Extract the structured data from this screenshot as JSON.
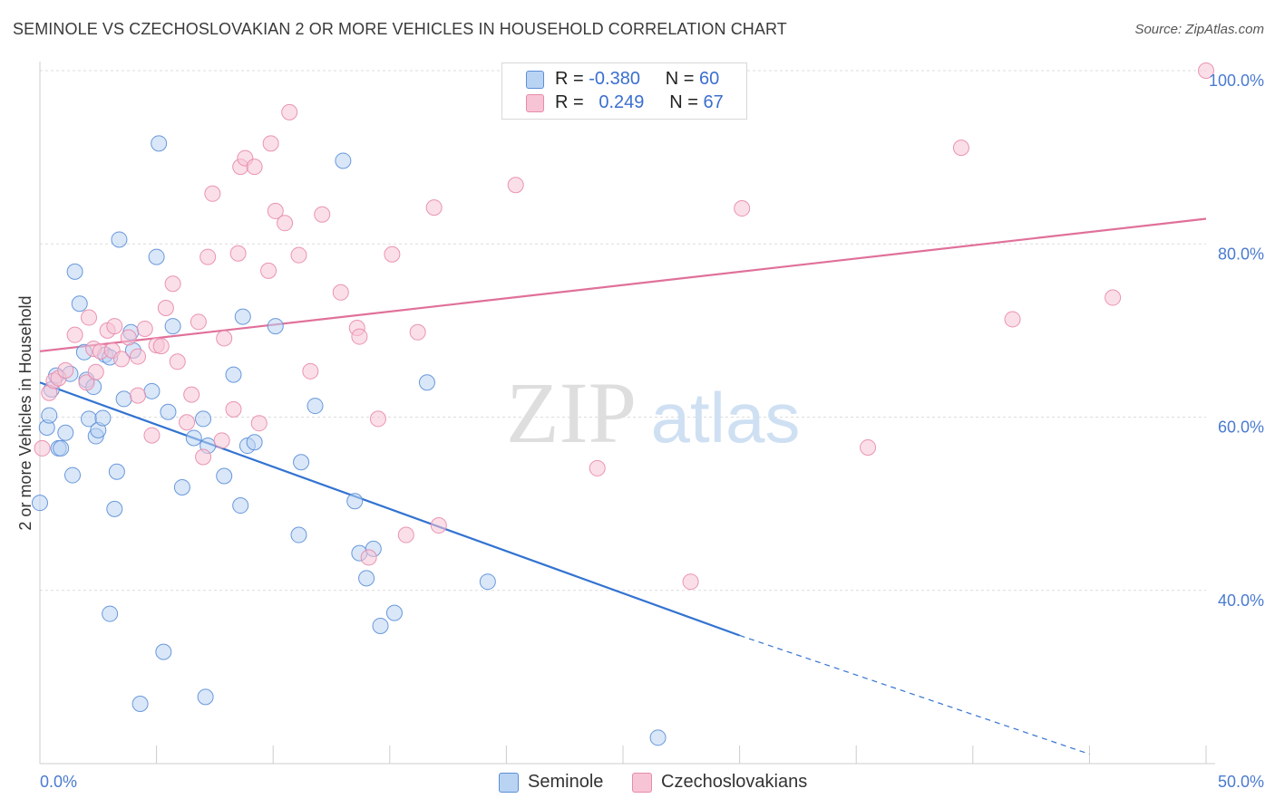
{
  "title": "SEMINOLE VS CZECHOSLOVAKIAN 2 OR MORE VEHICLES IN HOUSEHOLD CORRELATION CHART",
  "source": "Source: ZipAtlas.com",
  "watermark": {
    "zip": "ZIP",
    "atlas": "atlas"
  },
  "legend": {
    "rows": [
      {
        "r_label": "R =",
        "r_value": "-0.380",
        "n_label": "N =",
        "n_value": "60"
      },
      {
        "r_label": "R =",
        "r_value": "0.249",
        "n_label": "N =",
        "n_value": "67"
      }
    ]
  },
  "bottom_legend": [
    "Seminole",
    "Czechoslovakians"
  ],
  "colors": {
    "seminole_fill": "#b9d3f3",
    "seminole_stroke": "#5b8ed8",
    "seminole_line": "#3373d1",
    "czech_fill": "#f7c4d5",
    "czech_stroke": "#e88aab",
    "czech_line": "#e0709a",
    "tick_text": "#4a7bd0",
    "grid": "#dcdcdc"
  },
  "chart_data": {
    "type": "scatter",
    "xlabel": "",
    "ylabel": "2 or more Vehicles in Household",
    "xlim": [
      0,
      50
    ],
    "ylim": [
      20,
      100
    ],
    "x_tick_labels": [
      "0.0%",
      "50.0%"
    ],
    "y_ticks": [
      40,
      60,
      80,
      100
    ],
    "y_tick_labels": [
      "40.0%",
      "60.0%",
      "80.0%",
      "100.0%"
    ],
    "grid": true,
    "series": [
      {
        "name": "Seminole",
        "r": -0.38,
        "n": 60,
        "trend": {
          "x0": 0,
          "y0": 64.0,
          "x1": 30,
          "y1": 34.8,
          "dashed_to_x": 45,
          "dashed_to_y": 21.1
        },
        "points": [
          [
            0.0,
            50.1
          ],
          [
            0.3,
            58.8
          ],
          [
            0.4,
            60.2
          ],
          [
            0.5,
            63.2
          ],
          [
            0.7,
            64.8
          ],
          [
            0.8,
            56.4
          ],
          [
            0.9,
            56.4
          ],
          [
            1.1,
            58.2
          ],
          [
            1.3,
            65.0
          ],
          [
            1.4,
            53.3
          ],
          [
            1.5,
            76.8
          ],
          [
            1.7,
            73.1
          ],
          [
            1.9,
            67.5
          ],
          [
            2.0,
            64.3
          ],
          [
            2.1,
            59.8
          ],
          [
            2.3,
            63.5
          ],
          [
            2.4,
            57.8
          ],
          [
            2.5,
            58.5
          ],
          [
            2.7,
            59.9
          ],
          [
            2.8,
            67.2
          ],
          [
            3.0,
            66.9
          ],
          [
            3.0,
            37.3
          ],
          [
            3.2,
            49.4
          ],
          [
            3.3,
            53.7
          ],
          [
            3.4,
            80.5
          ],
          [
            3.6,
            62.1
          ],
          [
            3.9,
            69.8
          ],
          [
            4.0,
            67.7
          ],
          [
            4.3,
            26.9
          ],
          [
            4.8,
            63.0
          ],
          [
            5.0,
            78.5
          ],
          [
            5.1,
            91.6
          ],
          [
            5.3,
            32.9
          ],
          [
            5.5,
            60.6
          ],
          [
            5.7,
            70.5
          ],
          [
            6.1,
            51.9
          ],
          [
            6.6,
            57.6
          ],
          [
            7.0,
            59.8
          ],
          [
            7.1,
            27.7
          ],
          [
            7.2,
            56.7
          ],
          [
            7.9,
            53.2
          ],
          [
            8.3,
            64.9
          ],
          [
            8.6,
            49.8
          ],
          [
            8.7,
            71.6
          ],
          [
            8.9,
            56.7
          ],
          [
            9.2,
            57.1
          ],
          [
            10.1,
            70.5
          ],
          [
            11.1,
            46.4
          ],
          [
            11.2,
            54.8
          ],
          [
            11.8,
            61.3
          ],
          [
            13.0,
            89.6
          ],
          [
            13.5,
            50.3
          ],
          [
            13.7,
            44.3
          ],
          [
            14.0,
            41.4
          ],
          [
            14.3,
            44.8
          ],
          [
            14.6,
            35.9
          ],
          [
            15.2,
            37.4
          ],
          [
            16.6,
            64.0
          ],
          [
            19.2,
            41.0
          ],
          [
            26.5,
            23.0
          ]
        ]
      },
      {
        "name": "Czechoslovakians",
        "r": 0.249,
        "n": 67,
        "trend": {
          "x0": 0,
          "y0": 67.6,
          "x1": 50,
          "y1": 82.9
        },
        "points": [
          [
            0.1,
            56.4
          ],
          [
            0.4,
            62.8
          ],
          [
            0.6,
            64.2
          ],
          [
            0.8,
            64.5
          ],
          [
            1.1,
            65.4
          ],
          [
            1.5,
            69.5
          ],
          [
            2.0,
            64.0
          ],
          [
            2.1,
            71.5
          ],
          [
            2.3,
            67.9
          ],
          [
            2.4,
            65.2
          ],
          [
            2.6,
            67.6
          ],
          [
            2.9,
            70.0
          ],
          [
            3.1,
            67.7
          ],
          [
            3.2,
            70.5
          ],
          [
            3.5,
            66.7
          ],
          [
            3.8,
            69.2
          ],
          [
            4.2,
            67.0
          ],
          [
            4.2,
            62.5
          ],
          [
            4.5,
            70.2
          ],
          [
            4.8,
            57.9
          ],
          [
            5.0,
            68.3
          ],
          [
            5.2,
            68.2
          ],
          [
            5.4,
            72.6
          ],
          [
            5.7,
            75.4
          ],
          [
            5.9,
            66.4
          ],
          [
            6.3,
            59.4
          ],
          [
            6.5,
            62.6
          ],
          [
            6.8,
            71.0
          ],
          [
            7.0,
            55.4
          ],
          [
            7.2,
            78.5
          ],
          [
            7.4,
            85.8
          ],
          [
            7.8,
            57.3
          ],
          [
            7.9,
            69.1
          ],
          [
            8.3,
            60.9
          ],
          [
            8.5,
            78.9
          ],
          [
            8.6,
            88.9
          ],
          [
            8.8,
            89.9
          ],
          [
            9.2,
            88.9
          ],
          [
            9.4,
            59.3
          ],
          [
            9.8,
            76.9
          ],
          [
            9.9,
            91.6
          ],
          [
            10.1,
            83.8
          ],
          [
            10.5,
            82.4
          ],
          [
            10.7,
            95.2
          ],
          [
            11.1,
            78.7
          ],
          [
            11.6,
            65.3
          ],
          [
            12.1,
            83.4
          ],
          [
            12.9,
            74.4
          ],
          [
            13.6,
            70.3
          ],
          [
            13.7,
            69.3
          ],
          [
            14.1,
            43.8
          ],
          [
            14.5,
            59.8
          ],
          [
            15.1,
            78.8
          ],
          [
            15.7,
            46.4
          ],
          [
            16.2,
            69.8
          ],
          [
            16.9,
            84.2
          ],
          [
            17.1,
            47.5
          ],
          [
            20.4,
            86.8
          ],
          [
            23.9,
            54.1
          ],
          [
            25.0,
            100.0
          ],
          [
            27.9,
            41.0
          ],
          [
            30.1,
            84.1
          ],
          [
            35.5,
            56.5
          ],
          [
            39.5,
            91.1
          ],
          [
            41.7,
            71.3
          ],
          [
            46.0,
            73.8
          ],
          [
            50.0,
            100.0
          ]
        ]
      }
    ]
  }
}
